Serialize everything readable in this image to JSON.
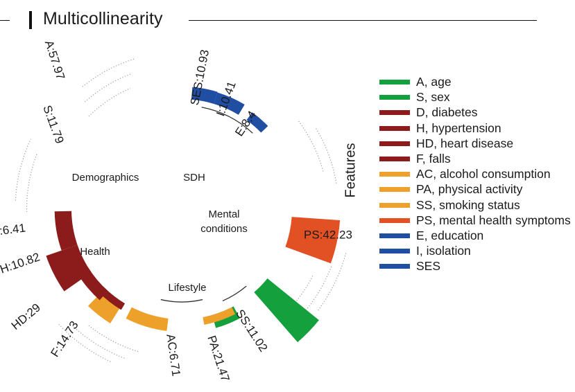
{
  "section_title": "Multicollinearity",
  "colors": {
    "demographics": "#14a03c",
    "health": "#8c1c1c",
    "lifestyle": "#eda12a",
    "mental": "#e25124",
    "sdh": "#1f4ea2"
  },
  "chart_data": {
    "type": "radial-bar",
    "legend_title": "Features",
    "legend_position": "right",
    "groups": [
      {
        "key": "demographics",
        "label": "Demographics",
        "color": "#14a03c",
        "features": [
          {
            "code": "A",
            "value": 57.97
          },
          {
            "code": "S",
            "value": 11.79
          }
        ]
      },
      {
        "key": "sdh",
        "label": "SDH",
        "color": "#1f4ea2",
        "features": [
          {
            "code": "SES",
            "value": 10.93
          },
          {
            "code": "I",
            "value": 10.41
          },
          {
            "code": "E",
            "value": 8.4
          }
        ]
      },
      {
        "key": "mental",
        "label": "Mental\nconditions",
        "color": "#e25124",
        "features": [
          {
            "code": "PS",
            "value": 42.23
          }
        ]
      },
      {
        "key": "lifestyle",
        "label": "Lifestyle",
        "color": "#eda12a",
        "features": [
          {
            "code": "SS",
            "value": 11.02
          },
          {
            "code": "PA",
            "value": 21.47
          },
          {
            "code": "AC",
            "value": 6.71
          }
        ]
      },
      {
        "key": "health",
        "label": "Health",
        "color": "#8c1c1c",
        "features": [
          {
            "code": "F",
            "value": 14.73
          },
          {
            "code": "HD",
            "value": 29.0
          },
          {
            "code": "H",
            "value": 10.82
          },
          {
            "code": "D",
            "value": 6.41
          }
        ]
      }
    ],
    "legend": [
      {
        "code": "A",
        "label": "A, age",
        "group": "demographics"
      },
      {
        "code": "S",
        "label": "S, sex",
        "group": "demographics"
      },
      {
        "code": "D",
        "label": "D, diabetes",
        "group": "health"
      },
      {
        "code": "H",
        "label": "H, hypertension",
        "group": "health"
      },
      {
        "code": "HD",
        "label": "HD, heart disease",
        "group": "health"
      },
      {
        "code": "F",
        "label": "F, falls",
        "group": "health"
      },
      {
        "code": "AC",
        "label": "AC, alcohol consumption",
        "group": "lifestyle"
      },
      {
        "code": "PA",
        "label": "PA, physical activity",
        "group": "lifestyle"
      },
      {
        "code": "SS",
        "label": "SS, smoking status",
        "group": "lifestyle"
      },
      {
        "code": "PS",
        "label": "PS, mental health symptoms",
        "group": "mental"
      },
      {
        "code": "E",
        "label": "E, education",
        "group": "sdh"
      },
      {
        "code": "I",
        "label": "I, isolation",
        "group": "sdh"
      },
      {
        "code": "SES",
        "label": "SES",
        "group": "sdh"
      }
    ]
  }
}
